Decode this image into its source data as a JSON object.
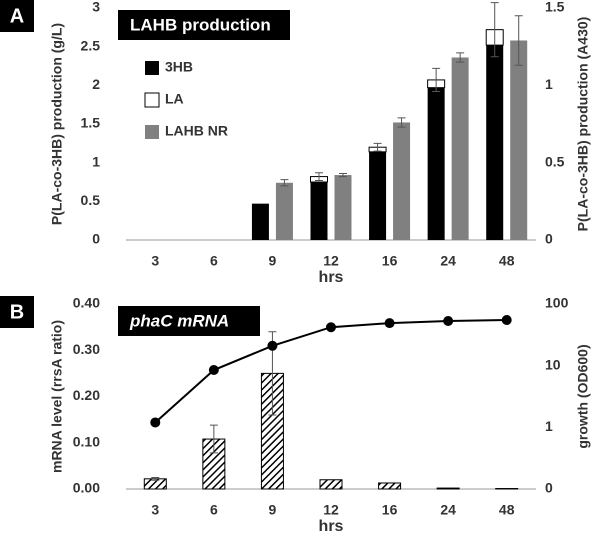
{
  "chart_data": [
    {
      "type": "bar",
      "panel": "A",
      "title": "LAHB production",
      "categories": [
        "3",
        "6",
        "9",
        "12",
        "16",
        "24",
        "48"
      ],
      "x_label": "hrs",
      "y_label": "P(LA-co-3HB) production (g/L)",
      "y2_label": "P(LA-co-3HB) production (A430)",
      "ylim": [
        0,
        3
      ],
      "yticks": [
        0,
        0.5,
        1,
        1.5,
        2,
        2.5,
        3
      ],
      "y2lim": [
        0,
        1.5
      ],
      "y2ticks": [
        0,
        0.5,
        1,
        1.5
      ],
      "stacked": true,
      "series": [
        {
          "name": "3HB",
          "color": "#000000",
          "values": [
            null,
            null,
            0.47,
            0.75,
            1.14,
            1.97,
            2.52
          ]
        },
        {
          "name": "LA",
          "color": "#ffffff",
          "values": [
            null,
            null,
            null,
            0.07,
            0.06,
            0.1,
            0.2
          ],
          "errors": [
            null,
            null,
            null,
            0.05,
            0.05,
            0.15,
            0.35
          ]
        },
        {
          "name": "LAHB NR",
          "color": "#808080",
          "axis": "y2",
          "values": [
            null,
            null,
            0.37,
            0.42,
            0.76,
            1.18,
            1.29
          ],
          "errors": [
            null,
            null,
            0.02,
            0.01,
            0.03,
            0.03,
            0.16
          ]
        }
      ]
    },
    {
      "type": "bar",
      "panel": "B",
      "title": "phaC mRNA",
      "categories": [
        "3",
        "6",
        "9",
        "12",
        "16",
        "24",
        "48"
      ],
      "x_label": "hrs",
      "y_label": "mRNA level (rrsA ratio)",
      "y2_label": "growth (OD600)",
      "ylim": [
        0,
        0.4
      ],
      "yticks": [
        {
          "value": 0,
          "label": "0.00"
        },
        {
          "value": 0.1,
          "label": "0.10"
        },
        {
          "value": 0.2,
          "label": "0.20"
        },
        {
          "value": 0.3,
          "label": "0.30"
        },
        {
          "value": 0.4,
          "label": "0.40"
        }
      ],
      "y2lim": [
        0.1,
        100
      ],
      "y2log": true,
      "y2ticks": [
        {
          "value": 0.1,
          "label": "0"
        },
        1,
        10,
        100
      ],
      "series": [
        {
          "color": "#000000",
          "hatch": true,
          "values": [
            0.022,
            0.108,
            0.25,
            0.02,
            0.013,
            0.002,
            0.001
          ],
          "errors": [
            0.003,
            0.03,
            0.09,
            null,
            null,
            null,
            null
          ]
        },
        {
          "type": "line",
          "color": "#000000",
          "axis": "y2",
          "values": [
            1.2,
            8.5,
            21,
            42,
            49,
            53,
            55
          ]
        }
      ]
    }
  ]
}
